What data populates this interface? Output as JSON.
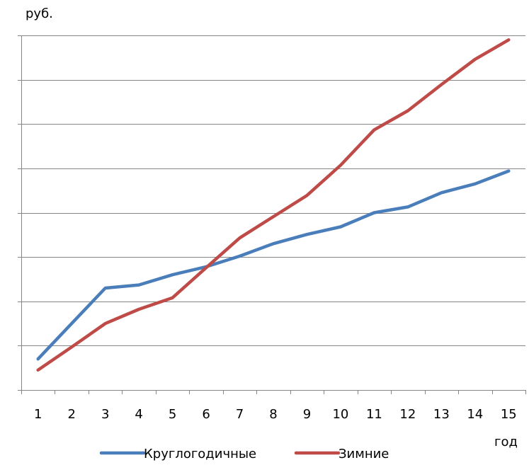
{
  "chart_data": {
    "type": "line",
    "title": "",
    "ylabel": "руб.",
    "xlabel": "год",
    "categories": [
      "1",
      "2",
      "3",
      "4",
      "5",
      "6",
      "7",
      "8",
      "9",
      "10",
      "11",
      "12",
      "13",
      "14",
      "15"
    ],
    "ylim": [
      0,
      8
    ],
    "yticks": [
      0,
      1,
      2,
      3,
      4,
      5,
      6,
      7,
      8
    ],
    "grid": true,
    "legend": "bottom",
    "series": [
      {
        "name": "Круглогодичные",
        "color": "#4A7EBB",
        "values": [
          0.7,
          1.5,
          2.3,
          2.37,
          2.6,
          2.78,
          3.02,
          3.3,
          3.51,
          3.68,
          4.0,
          4.13,
          4.45,
          4.65,
          4.94
        ]
      },
      {
        "name": "Зимние",
        "color": "#BE4B48",
        "values": [
          0.45,
          0.97,
          1.5,
          1.82,
          2.08,
          2.76,
          3.43,
          3.91,
          4.39,
          5.07,
          5.87,
          6.3,
          6.89,
          7.46,
          7.9
        ]
      }
    ]
  }
}
